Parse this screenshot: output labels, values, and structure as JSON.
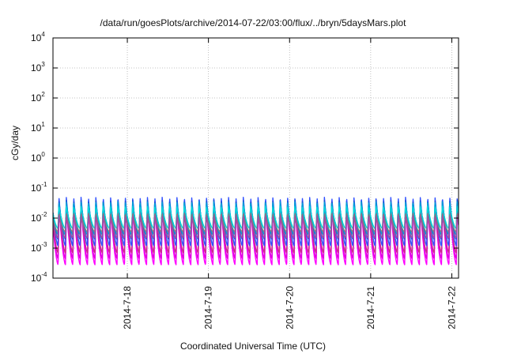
{
  "chart_data": {
    "type": "line",
    "title": "/data/run/goesPlots/archive/2014-07-22/03:00/flux/../bryn/5daysMars.plot",
    "xlabel": "Coordinated Universal Time (UTC)",
    "ylabel": "cGy/day",
    "yscale": "log",
    "ylim": [
      0.0001,
      10000
    ],
    "xlim": [
      "2014-07-17T02:00",
      "2014-07-22T02:00"
    ],
    "y_ticks": [
      {
        "base": "10",
        "exp": "-4"
      },
      {
        "base": "10",
        "exp": "-3"
      },
      {
        "base": "10",
        "exp": "-2"
      },
      {
        "base": "10",
        "exp": "-1"
      },
      {
        "base": "10",
        "exp": "0"
      },
      {
        "base": "10",
        "exp": "1"
      },
      {
        "base": "10",
        "exp": "2"
      },
      {
        "base": "10",
        "exp": "3"
      },
      {
        "base": "10",
        "exp": "4"
      }
    ],
    "x_ticks": [
      {
        "label": "2014-7-18",
        "t": "2014-07-18T00:00"
      },
      {
        "label": "2014-7-19",
        "t": "2014-07-19T00:00"
      },
      {
        "label": "2014-7-20",
        "t": "2014-07-20T00:00"
      },
      {
        "label": "2014-7-21",
        "t": "2014-07-21T00:00"
      },
      {
        "label": "2014-7-22",
        "t": "2014-07-22T00:00"
      }
    ],
    "grid": true,
    "oscillation": {
      "cycles_per_day": 11,
      "peak_phase": 0.3
    },
    "series": [
      {
        "color": "#ff00ff",
        "peak": 0.022,
        "trough": 0.00028
      },
      {
        "color": "#e000e0",
        "peak": 0.02,
        "trough": 0.00045
      },
      {
        "color": "#cc2a8c",
        "peak": 0.025,
        "trough": 0.0007
      },
      {
        "color": "#3050ff",
        "peak": 0.05,
        "trough": 0.0012
      },
      {
        "color": "#1a50d0",
        "peak": 0.04,
        "trough": 0.002
      },
      {
        "color": "#00a0d8",
        "peak": 0.035,
        "trough": 0.0028
      },
      {
        "color": "#00d8d8",
        "peak": 0.025,
        "trough": 0.0045
      },
      {
        "color": "#808080",
        "peak": 0.014,
        "trough": 0.0035
      },
      {
        "color": "#a050a0",
        "peak": 0.012,
        "trough": 0.0022
      }
    ]
  }
}
